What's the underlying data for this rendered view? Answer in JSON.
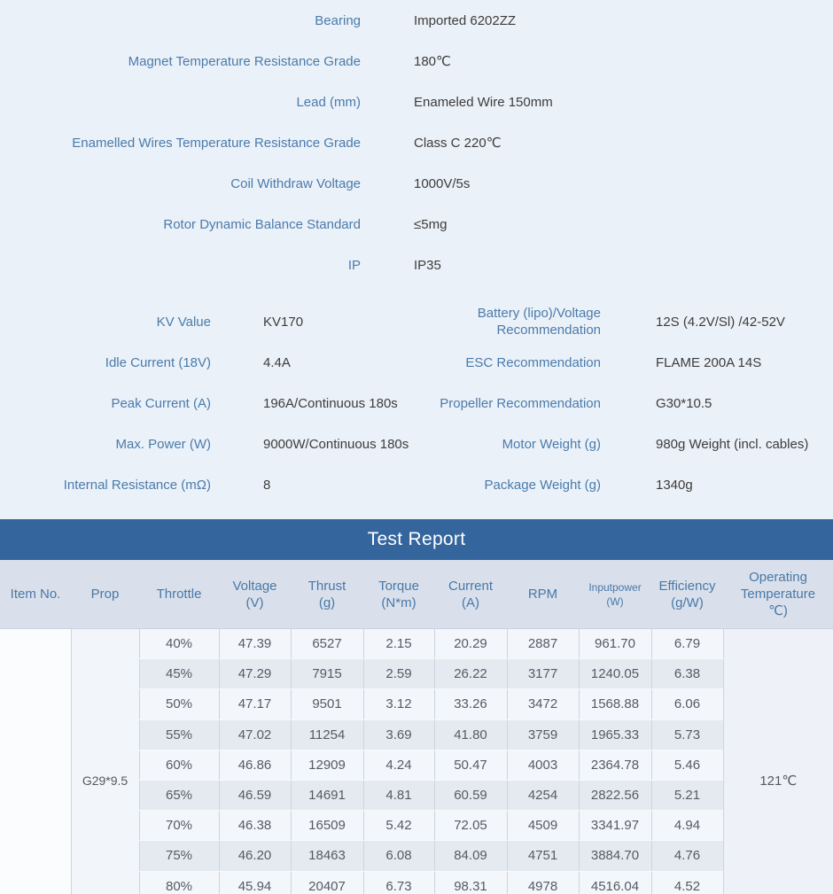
{
  "specs_top": {
    "rows": [
      {
        "label": "Bearing",
        "value": "Imported 6202ZZ"
      },
      {
        "label": "Magnet Temperature Resistance Grade",
        "value": "180℃"
      },
      {
        "label": "Lead (mm)",
        "value": "Enameled Wire 150mm"
      },
      {
        "label": "Enamelled Wires Temperature Resistance Grade",
        "value": "Class C 220℃"
      },
      {
        "label": "Coil Withdraw Voltage",
        "value": "1000V/5s"
      },
      {
        "label": "Rotor Dynamic Balance Standard",
        "value": "≤5mg"
      },
      {
        "label": "IP",
        "value": "IP35"
      }
    ]
  },
  "specs_grid": {
    "rows": [
      {
        "left_label": "KV Value",
        "left_value": "KV170",
        "right_label": "Battery (lipo)/Voltage Recommendation",
        "right_value": "12S (4.2V/Sl) /42-52V"
      },
      {
        "left_label": "Idle Current (18V)",
        "left_value": "4.4A",
        "right_label": "ESC Recommendation",
        "right_value": "FLAME 200A 14S"
      },
      {
        "left_label": "Peak Current (A)",
        "left_value": "196A/Continuous 180s",
        "right_label": "Propeller Recommendation",
        "right_value": "G30*10.5"
      },
      {
        "left_label": "Max. Power (W)",
        "left_value": "9000W/Continuous 180s",
        "right_label": "Motor Weight (g)",
        "right_value": "980g Weight (incl. cables)"
      },
      {
        "left_label": "Internal Resistance (mΩ)",
        "left_value": "8",
        "right_label": "Package Weight (g)",
        "right_value": "1340g"
      }
    ]
  },
  "test_report": {
    "title": "Test Report",
    "columns": [
      "Item No.",
      "Prop",
      "Throttle",
      "Voltage\n(V)",
      "Thrust\n(g)",
      "Torque\n(N*m)",
      "Current\n(A)",
      "RPM",
      "Inputpower\n(W)",
      "Efficiency\n(g/W)",
      "Operating\nTemperature\n℃)"
    ],
    "item_no": "",
    "prop": "G29*9.5",
    "operating_temperature": "121℃",
    "rows": [
      [
        "40%",
        "47.39",
        "6527",
        "2.15",
        "20.29",
        "2887",
        "961.70",
        "6.79"
      ],
      [
        "45%",
        "47.29",
        "7915",
        "2.59",
        "26.22",
        "3177",
        "1240.05",
        "6.38"
      ],
      [
        "50%",
        "47.17",
        "9501",
        "3.12",
        "33.26",
        "3472",
        "1568.88",
        "6.06"
      ],
      [
        "55%",
        "47.02",
        "11254",
        "3.69",
        "41.80",
        "3759",
        "1965.33",
        "5.73"
      ],
      [
        "60%",
        "46.86",
        "12909",
        "4.24",
        "50.47",
        "4003",
        "2364.78",
        "5.46"
      ],
      [
        "65%",
        "46.59",
        "14691",
        "4.81",
        "60.59",
        "4254",
        "2822.56",
        "5.21"
      ],
      [
        "70%",
        "46.38",
        "16509",
        "5.42",
        "72.05",
        "4509",
        "3341.97",
        "4.94"
      ],
      [
        "75%",
        "46.20",
        "18463",
        "6.08",
        "84.09",
        "4751",
        "3884.70",
        "4.76"
      ],
      [
        "80%",
        "45.94",
        "20407",
        "6.73",
        "98.31",
        "4978",
        "4516.04",
        "4.52"
      ]
    ]
  },
  "colors": {
    "page_background": "#ebf1f8",
    "banner_background": "#34659c",
    "label_blue": "#4a7bab",
    "table_header_background": "#d9e0eb",
    "stripe_light": "#f3f6fa",
    "stripe_dark": "#e5eaf1"
  }
}
